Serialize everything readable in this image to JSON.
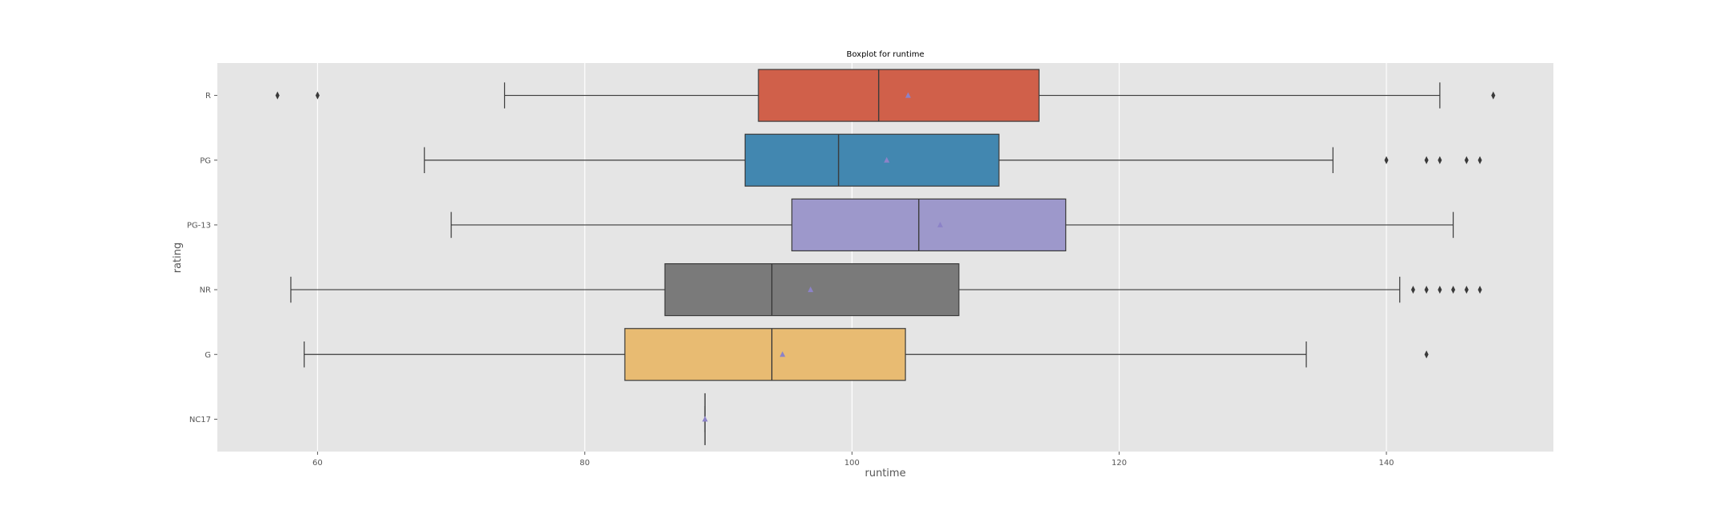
{
  "chart_data": {
    "type": "boxplot",
    "orientation": "horizontal",
    "title": "Boxplot for runtime",
    "xlabel": "runtime",
    "ylabel": "rating",
    "xlim": [
      52.5,
      152.5
    ],
    "x_ticks": [
      60,
      80,
      100,
      120,
      140
    ],
    "x_tick_labels": [
      "60",
      "80",
      "100",
      "120",
      "140"
    ],
    "grid": true,
    "categories": [
      "R",
      "PG",
      "PG-13",
      "NR",
      "G",
      "NC17"
    ],
    "boxes": [
      {
        "category": "R",
        "whisker_low": 74,
        "q1": 93,
        "median": 102,
        "q3": 114,
        "whisker_high": 144,
        "mean": 104.2,
        "outliers": [
          57,
          60,
          148
        ],
        "color": "#d0604a"
      },
      {
        "category": "PG",
        "whisker_low": 68,
        "q1": 92,
        "median": 99,
        "q3": 111,
        "whisker_high": 136,
        "mean": 102.6,
        "outliers": [
          140,
          143,
          144,
          146,
          147
        ],
        "color": "#4287b0"
      },
      {
        "category": "PG-13",
        "whisker_low": 70,
        "q1": 95.5,
        "median": 105,
        "q3": 116,
        "whisker_high": 145,
        "mean": 106.6,
        "outliers": [],
        "color": "#9d98cb"
      },
      {
        "category": "NR",
        "whisker_low": 58,
        "q1": 86,
        "median": 94,
        "q3": 108,
        "whisker_high": 141,
        "mean": 96.9,
        "outliers": [
          142,
          143,
          144,
          145,
          146,
          147
        ],
        "color": "#7a7a7a"
      },
      {
        "category": "G",
        "whisker_low": 59,
        "q1": 83,
        "median": 94,
        "q3": 104,
        "whisker_high": 134,
        "mean": 94.8,
        "outliers": [
          143
        ],
        "color": "#e8bb72"
      },
      {
        "category": "NC17",
        "whisker_low": 89,
        "q1": 89,
        "median": 89,
        "q3": 89,
        "whisker_high": 89,
        "mean": 89,
        "outliers": [],
        "color": "#e8bb72"
      }
    ],
    "colors": {
      "plot_background": "#e5e5e5",
      "grid": "#ffffff",
      "line": "#3a3a3a",
      "mean_marker": "#8c82c8"
    }
  }
}
